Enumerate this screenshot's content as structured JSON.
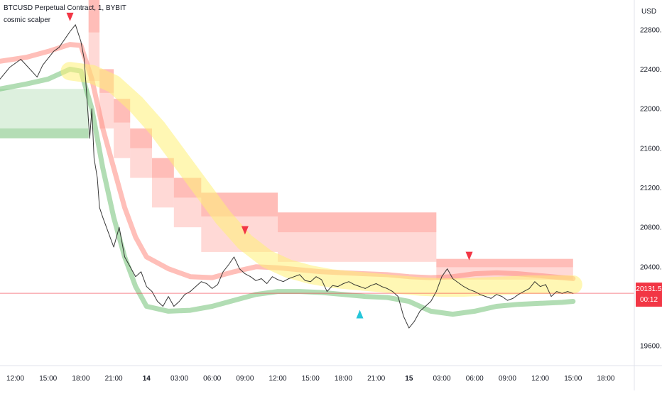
{
  "header": {
    "symbol_title": "BTCUSD Perpetual Contract, 1, BYBIT",
    "indicator_name": "cosmic scalper"
  },
  "currency_label": "USD",
  "last_price": {
    "value": "20131.5",
    "countdown": "00:12"
  },
  "colors": {
    "price_line": "#222222",
    "current_price_line": "#f23645",
    "red_signal": "#f23645",
    "cyan_signal": "#26c6da",
    "upper_band": "#ff8a80",
    "lower_band": "#66bb6a",
    "mid_band": "#fff176"
  },
  "chart_data": {
    "type": "line",
    "title": "BTCUSD Perpetual Contract, 1, BYBIT",
    "xlabel": "",
    "ylabel": "",
    "ylim": [
      19400,
      23100
    ],
    "y_ticks": [
      19600,
      20000,
      20400,
      20800,
      21200,
      21600,
      22000,
      22400,
      22800
    ],
    "y_tick_labels": [
      "19600.0",
      "",
      "20400.0",
      "20800.0",
      "21200.0",
      "21600.0",
      "22000.0",
      "22400.0",
      "22800.0"
    ],
    "x_ticks": [
      {
        "label": "12:00",
        "t": -12,
        "bold": false
      },
      {
        "label": "15:00",
        "t": -9,
        "bold": false
      },
      {
        "label": "18:00",
        "t": -6,
        "bold": false
      },
      {
        "label": "21:00",
        "t": -3,
        "bold": false
      },
      {
        "label": "14",
        "t": 0,
        "bold": true
      },
      {
        "label": "03:00",
        "t": 3,
        "bold": false
      },
      {
        "label": "06:00",
        "t": 6,
        "bold": false
      },
      {
        "label": "09:00",
        "t": 9,
        "bold": false
      },
      {
        "label": "12:00",
        "t": 12,
        "bold": false
      },
      {
        "label": "15:00",
        "t": 15,
        "bold": false
      },
      {
        "label": "18:00",
        "t": 18,
        "bold": false
      },
      {
        "label": "21:00",
        "t": 21,
        "bold": false
      },
      {
        "label": "15",
        "t": 24,
        "bold": true
      },
      {
        "label": "03:00",
        "t": 27,
        "bold": false
      },
      {
        "label": "06:00",
        "t": 30,
        "bold": false
      },
      {
        "label": "09:00",
        "t": 33,
        "bold": false
      },
      {
        "label": "12:00",
        "t": 36,
        "bold": false
      },
      {
        "label": "15:00",
        "t": 39,
        "bold": false
      },
      {
        "label": "18:00",
        "t": 42,
        "bold": false
      }
    ],
    "xlim": [
      -13.4,
      44.6
    ],
    "current_price": 20131.5,
    "series": [
      {
        "name": "",
        "role": "price",
        "x": [
          -13.4,
          -12.5,
          -11.5,
          -10.5,
          -10,
          -9.5,
          -8.5,
          -8,
          -7.5,
          -7,
          -6.5,
          -6,
          -5.7,
          -5.2,
          -5,
          -4.8,
          -4.5,
          -4.3,
          -4,
          -3.5,
          -3,
          -2.5,
          -2,
          -1.5,
          -1,
          -0.5,
          0,
          0.5,
          1,
          1.5,
          2,
          2.5,
          3,
          3.5,
          4,
          4.5,
          5,
          5.5,
          6,
          6.5,
          7,
          7.5,
          8,
          8.5,
          9,
          9.5,
          10,
          10.5,
          11,
          11.5,
          12,
          12.5,
          13,
          13.5,
          14,
          14.5,
          15,
          15.5,
          16,
          16.5,
          17,
          17.5,
          18,
          18.5,
          19,
          19.5,
          20,
          20.5,
          21,
          21.5,
          22,
          22.5,
          23,
          23.5,
          24,
          24.5,
          25,
          25.5,
          26,
          26.5,
          27,
          27.5,
          28,
          28.5,
          29,
          29.5,
          30,
          30.5,
          31,
          31.5,
          32,
          32.5,
          33,
          33.5,
          34,
          34.5,
          35,
          35.5,
          36,
          36.5,
          37,
          37.5,
          38,
          38.5,
          39
        ],
        "values": [
          22300,
          22420,
          22500,
          22380,
          22320,
          22440,
          22580,
          22620,
          22700,
          22780,
          22850,
          22680,
          22500,
          21700,
          22000,
          21500,
          21300,
          21000,
          20900,
          20750,
          20600,
          20800,
          20500,
          20400,
          20300,
          20350,
          20200,
          20150,
          20050,
          20000,
          20100,
          20000,
          20050,
          20120,
          20150,
          20200,
          20250,
          20230,
          20180,
          20220,
          20350,
          20420,
          20500,
          20380,
          20330,
          20300,
          20260,
          20280,
          20230,
          20300,
          20270,
          20250,
          20280,
          20300,
          20320,
          20260,
          20250,
          20300,
          20270,
          20150,
          20210,
          20200,
          20230,
          20250,
          20220,
          20200,
          20180,
          20210,
          20230,
          20200,
          20180,
          20150,
          20100,
          19900,
          19780,
          19850,
          19950,
          20000,
          20050,
          20150,
          20300,
          20380,
          20280,
          20240,
          20200,
          20170,
          20150,
          20120,
          20100,
          20080,
          20120,
          20100,
          20060,
          20080,
          20120,
          20150,
          20180,
          20250,
          20200,
          20220,
          20100,
          20150,
          20130,
          20150,
          20131
        ]
      },
      {
        "name": "",
        "role": "upper-band",
        "x": [
          -13.4,
          -11,
          -9,
          -7,
          -6,
          -5,
          -4,
          -3,
          -2,
          -1,
          0,
          2,
          4,
          6,
          8,
          10,
          12,
          14,
          16,
          18,
          20,
          22,
          24,
          26,
          28,
          30,
          32,
          34,
          36,
          38,
          39
        ],
        "values": [
          22480,
          22520,
          22580,
          22650,
          22640,
          22300,
          21800,
          21400,
          21000,
          20700,
          20500,
          20380,
          20300,
          20290,
          20350,
          20400,
          20390,
          20370,
          20350,
          20340,
          20330,
          20320,
          20300,
          20290,
          20300,
          20330,
          20340,
          20330,
          20310,
          20290,
          20280
        ]
      },
      {
        "name": "",
        "role": "lower-band",
        "x": [
          -13.4,
          -11,
          -9,
          -7,
          -6,
          -5,
          -4,
          -3,
          -2,
          -1,
          0,
          2,
          4,
          6,
          8,
          10,
          12,
          14,
          16,
          18,
          20,
          22,
          24,
          26,
          28,
          30,
          32,
          34,
          36,
          38,
          39
        ],
        "values": [
          22200,
          22250,
          22300,
          22400,
          22380,
          22000,
          21400,
          20900,
          20500,
          20200,
          20000,
          19950,
          19960,
          20000,
          20060,
          20120,
          20150,
          20150,
          20140,
          20120,
          20100,
          20090,
          20050,
          19950,
          19920,
          19950,
          20000,
          20020,
          20030,
          20040,
          20050
        ]
      },
      {
        "name": "",
        "role": "mid-band",
        "x": [
          -7,
          -5,
          -3,
          -1,
          1,
          3,
          5,
          7,
          9,
          11,
          13,
          15,
          17,
          19,
          21,
          23,
          25,
          27,
          29,
          31,
          33,
          35,
          37,
          39
        ],
        "values": [
          22380,
          22350,
          22250,
          22050,
          21800,
          21500,
          21200,
          20900,
          20650,
          20480,
          20380,
          20320,
          20280,
          20260,
          20240,
          20220,
          20200,
          20190,
          20190,
          20200,
          20210,
          20220,
          20220,
          20220
        ]
      }
    ],
    "resistance_blocks": [
      {
        "x0": -5.3,
        "x1": -4.3,
        "y0": 22280,
        "y1": 23100
      },
      {
        "x0": -4.3,
        "x1": -3.0,
        "y0": 21800,
        "y1": 22400
      },
      {
        "x0": -3.0,
        "x1": -1.5,
        "y0": 21500,
        "y1": 22100
      },
      {
        "x0": -1.5,
        "x1": 0.5,
        "y0": 21300,
        "y1": 21800
      },
      {
        "x0": 0.5,
        "x1": 2.5,
        "y0": 21000,
        "y1": 21500
      },
      {
        "x0": 2.5,
        "x1": 5.0,
        "y0": 20800,
        "y1": 21300
      },
      {
        "x0": 5.0,
        "x1": 12.0,
        "y0": 20550,
        "y1": 21150
      },
      {
        "x0": 12.0,
        "x1": 26.5,
        "y0": 20450,
        "y1": 20950
      },
      {
        "x0": 26.5,
        "x1": 39.0,
        "y0": 20270,
        "y1": 20480
      }
    ],
    "support_blocks": [
      {
        "x0": -13.4,
        "x1": -5.3,
        "y0": 21700,
        "y1": 22200
      }
    ],
    "signals": [
      {
        "type": "sell",
        "x": -7.0,
        "y": 22900
      },
      {
        "type": "sell",
        "x": 9.0,
        "y": 20740
      },
      {
        "type": "sell",
        "x": 29.5,
        "y": 20480
      },
      {
        "type": "buy",
        "x": 19.5,
        "y": 19950
      }
    ],
    "grid": false,
    "legend": "top-left"
  }
}
